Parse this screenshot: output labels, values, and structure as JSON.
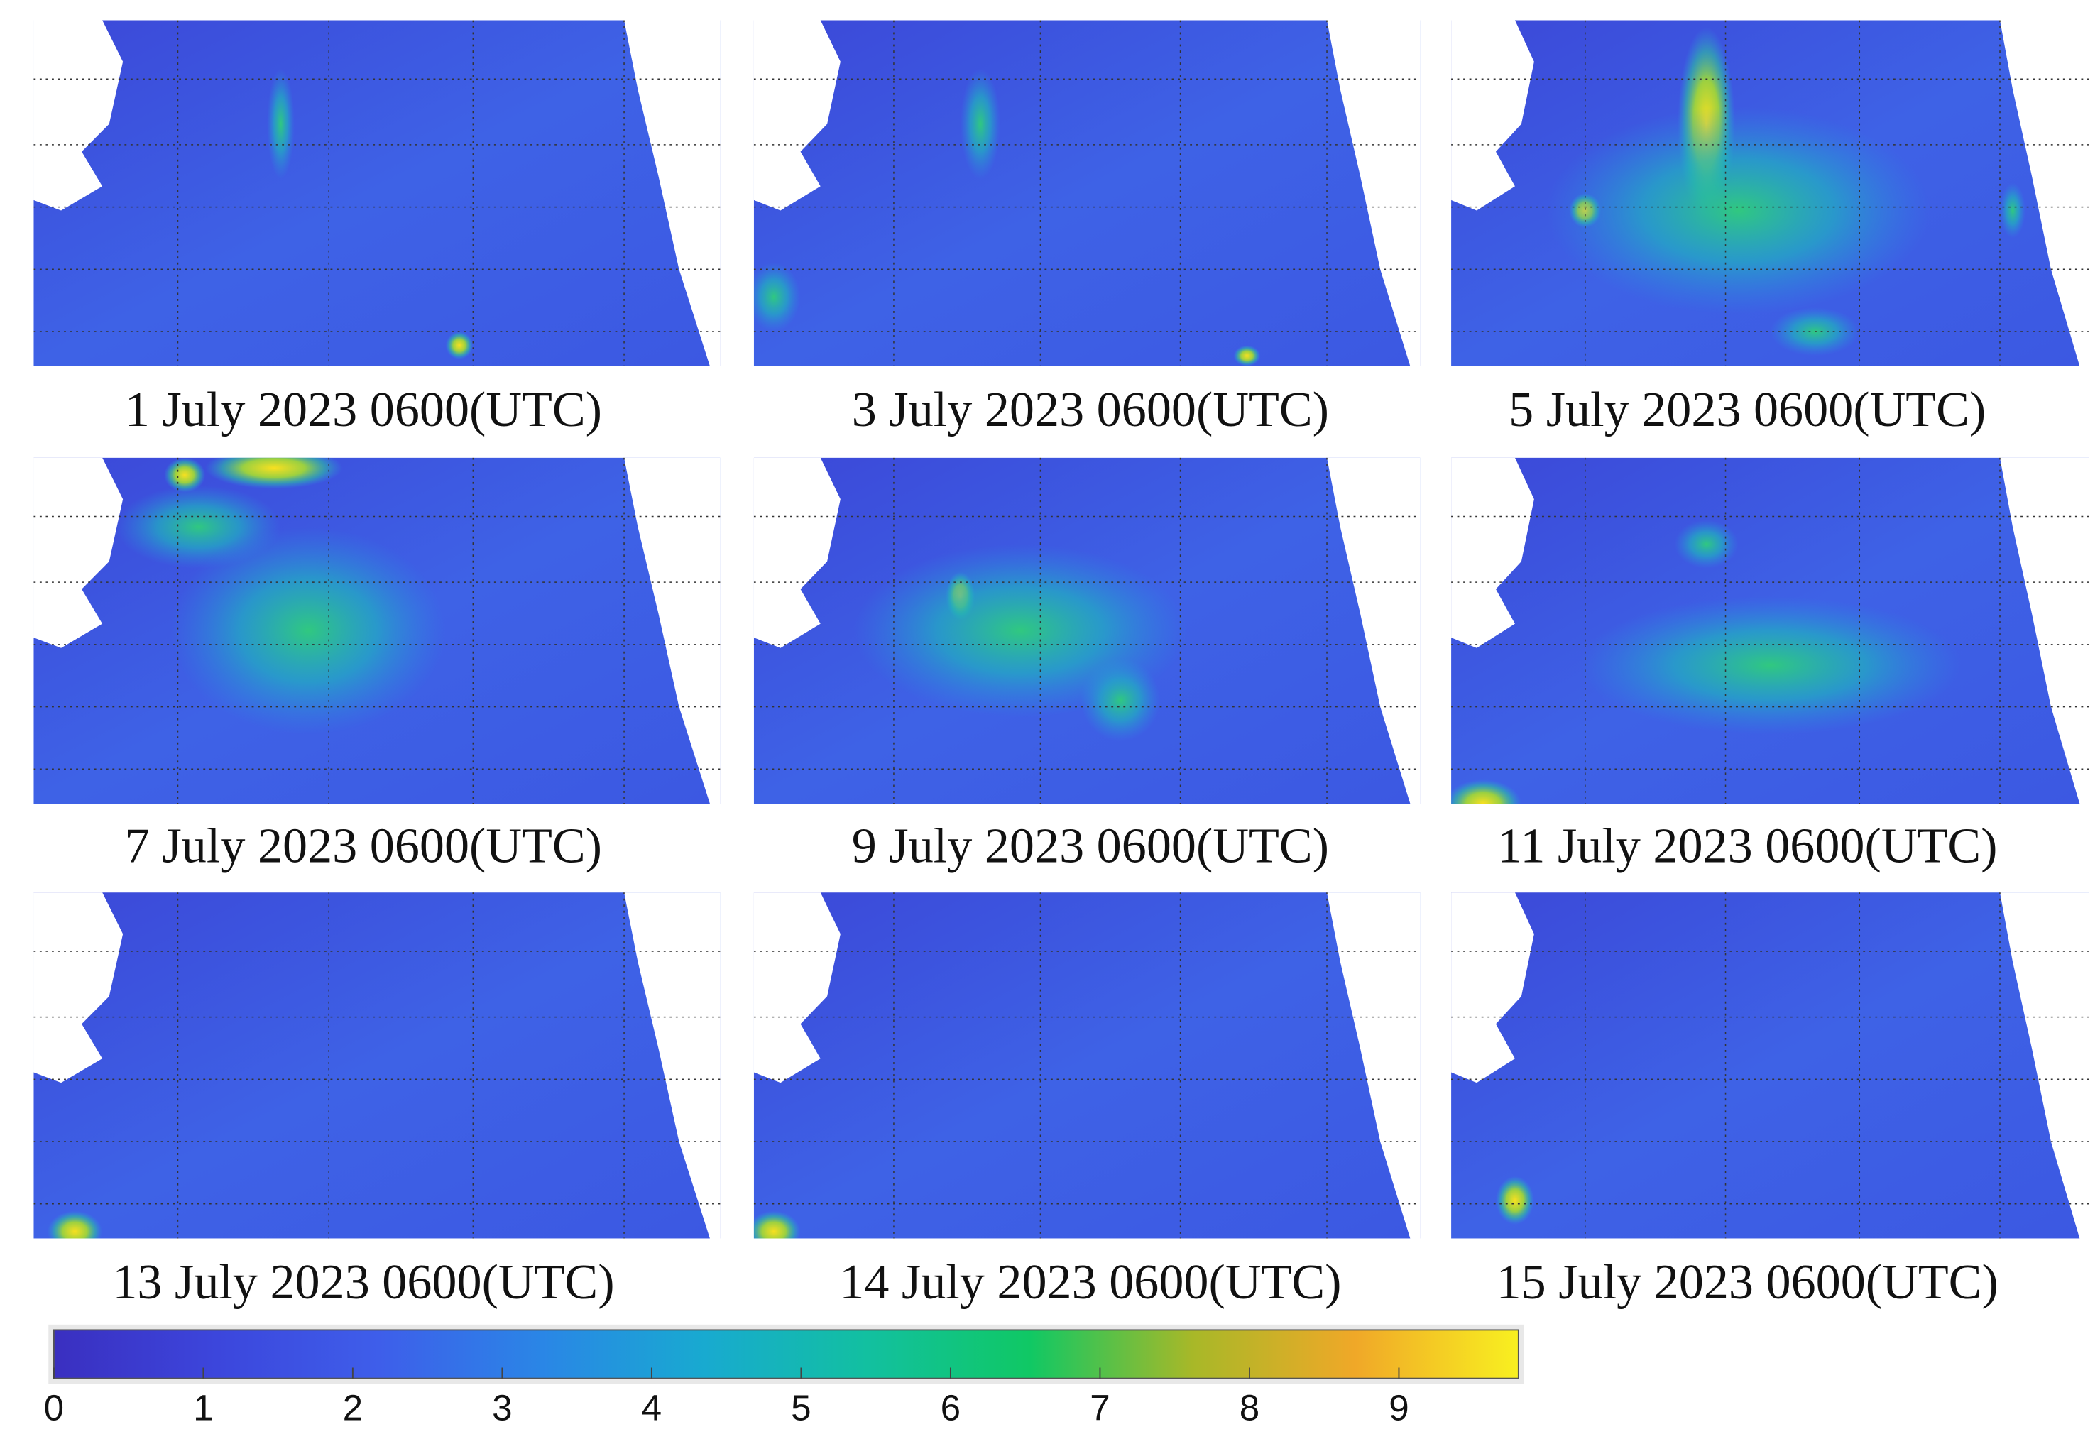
{
  "panels": [
    {
      "caption": "1 July 2023 0600(UTC)"
    },
    {
      "caption": "3 July 2023 0600(UTC)"
    },
    {
      "caption": "5 July 2023 0600(UTC)"
    },
    {
      "caption": "7 July 2023 0600(UTC)"
    },
    {
      "caption": "9 July 2023 0600(UTC)"
    },
    {
      "caption": "11 July 2023 0600(UTC)"
    },
    {
      "caption": "13 July 2023 0600(UTC)"
    },
    {
      "caption": "14 July 2023 0600(UTC)"
    },
    {
      "caption": "15 July 2023 0600(UTC)"
    }
  ],
  "colorbar": {
    "lim": [
      0,
      9.8
    ],
    "ticks": [
      0,
      1,
      2,
      3,
      4,
      5,
      6,
      7,
      8,
      9
    ],
    "colors": [
      "#3a2fc0",
      "#3c46dc",
      "#3e5eea",
      "#2a86e6",
      "#18aad0",
      "#12c0a0",
      "#10c864",
      "#a8b828",
      "#f0a828",
      "#f8f020"
    ]
  }
}
